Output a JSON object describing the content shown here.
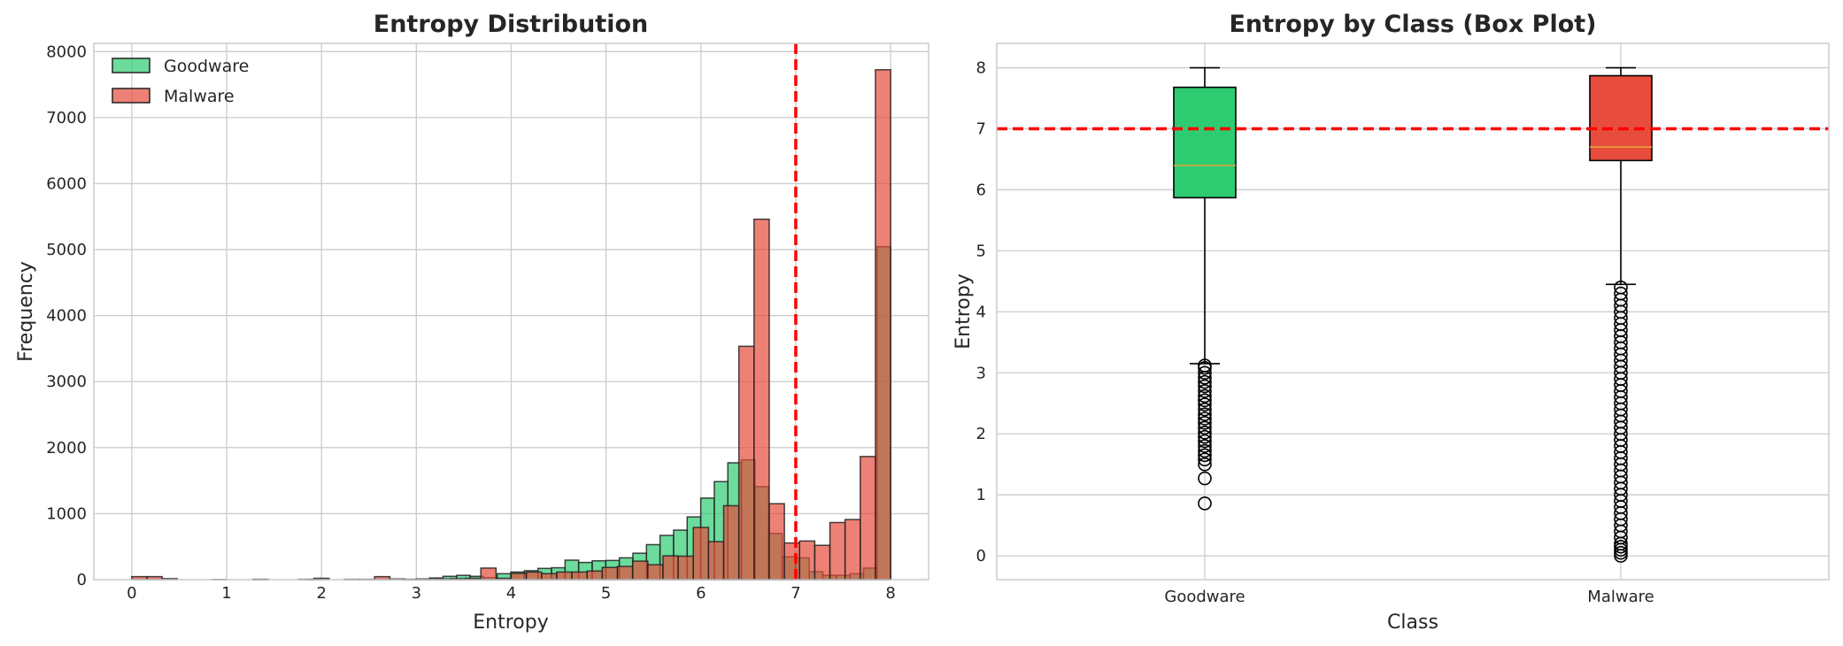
{
  "colors": {
    "goodware": "#2ecc71",
    "malware": "#e74c3c",
    "threshold": "#ff0000",
    "median": "#e6a23c",
    "grid": "#cccccc"
  },
  "chart_data": [
    {
      "type": "histogram",
      "title": "Entropy Distribution",
      "xlabel": "Entropy",
      "ylabel": "Frequency",
      "xlim": [
        -0.4,
        8.4
      ],
      "ylim": [
        0,
        8125
      ],
      "xticks": [
        0,
        1,
        2,
        3,
        4,
        5,
        6,
        7,
        8
      ],
      "yticks": [
        0,
        1000,
        2000,
        3000,
        4000,
        5000,
        6000,
        7000,
        8000
      ],
      "grid": true,
      "legend_position": "top-left",
      "threshold_line": {
        "x": 7,
        "style": "dashed"
      },
      "series": [
        {
          "name": "Goodware",
          "color": "#2ecc71",
          "bin_start": 0.85,
          "bin_end": 8.0,
          "counts": [
            2,
            0,
            0,
            4,
            0,
            0,
            0,
            4,
            0,
            0,
            0,
            0,
            0,
            0,
            2,
            10,
            25,
            50,
            65,
            50,
            30,
            90,
            115,
            135,
            170,
            180,
            295,
            260,
            285,
            290,
            330,
            400,
            530,
            670,
            750,
            950,
            1235,
            1485,
            1770,
            1815,
            1410,
            700,
            345,
            330,
            120,
            65,
            65,
            90,
            175,
            5045
          ]
        },
        {
          "name": "Malware",
          "color": "#e74c3c",
          "bin_start": 0.0,
          "bin_end": 8.0,
          "counts": [
            45,
            45,
            15,
            0,
            0,
            0,
            0,
            0,
            5,
            0,
            0,
            5,
            20,
            0,
            5,
            5,
            45,
            10,
            5,
            5,
            10,
            15,
            20,
            175,
            20,
            95,
            115,
            90,
            115,
            115,
            130,
            185,
            200,
            280,
            225,
            360,
            355,
            790,
            575,
            1120,
            3535,
            5460,
            1150,
            555,
            585,
            520,
            865,
            910,
            1865,
            7725
          ]
        }
      ]
    },
    {
      "type": "box",
      "title": "Entropy by Class (Box Plot)",
      "xlabel": "Class",
      "ylabel": "Entropy",
      "xlim": [
        0.5,
        2.5
      ],
      "ylim": [
        -0.39,
        8.4
      ],
      "yticks": [
        0,
        1,
        2,
        3,
        4,
        5,
        6,
        7,
        8
      ],
      "categories": [
        "Goodware",
        "Malware"
      ],
      "grid": true,
      "threshold_line": {
        "y": 7,
        "style": "dashed"
      },
      "boxes": [
        {
          "name": "Goodware",
          "color": "#2ecc71",
          "whisker_low": 3.15,
          "q1": 5.87,
          "median": 6.4,
          "q3": 7.68,
          "whisker_high": 8.0,
          "outliers": [
            0.86,
            1.27,
            1.5,
            1.58,
            1.65,
            1.72,
            1.8,
            1.88,
            1.95,
            2.02,
            2.1,
            2.18,
            2.25,
            2.32,
            2.4,
            2.48,
            2.55,
            2.62,
            2.7,
            2.78,
            2.85,
            2.92,
            3.0,
            3.08,
            3.12
          ]
        },
        {
          "name": "Malware",
          "color": "#e74c3c",
          "whisker_low": 4.45,
          "q1": 6.48,
          "median": 6.7,
          "q3": 7.87,
          "whisker_high": 8.0,
          "outliers": [
            0,
            0.05,
            0.1,
            0.15,
            0.2,
            0.3,
            0.4,
            0.5,
            0.6,
            0.7,
            0.8,
            0.9,
            1.0,
            1.1,
            1.2,
            1.3,
            1.4,
            1.5,
            1.6,
            1.7,
            1.8,
            1.9,
            2.0,
            2.1,
            2.2,
            2.3,
            2.4,
            2.5,
            2.6,
            2.7,
            2.8,
            2.9,
            3.0,
            3.1,
            3.2,
            3.3,
            3.4,
            3.5,
            3.6,
            3.7,
            3.8,
            3.9,
            4.0,
            4.1,
            4.2,
            4.3,
            4.4
          ]
        }
      ]
    }
  ]
}
